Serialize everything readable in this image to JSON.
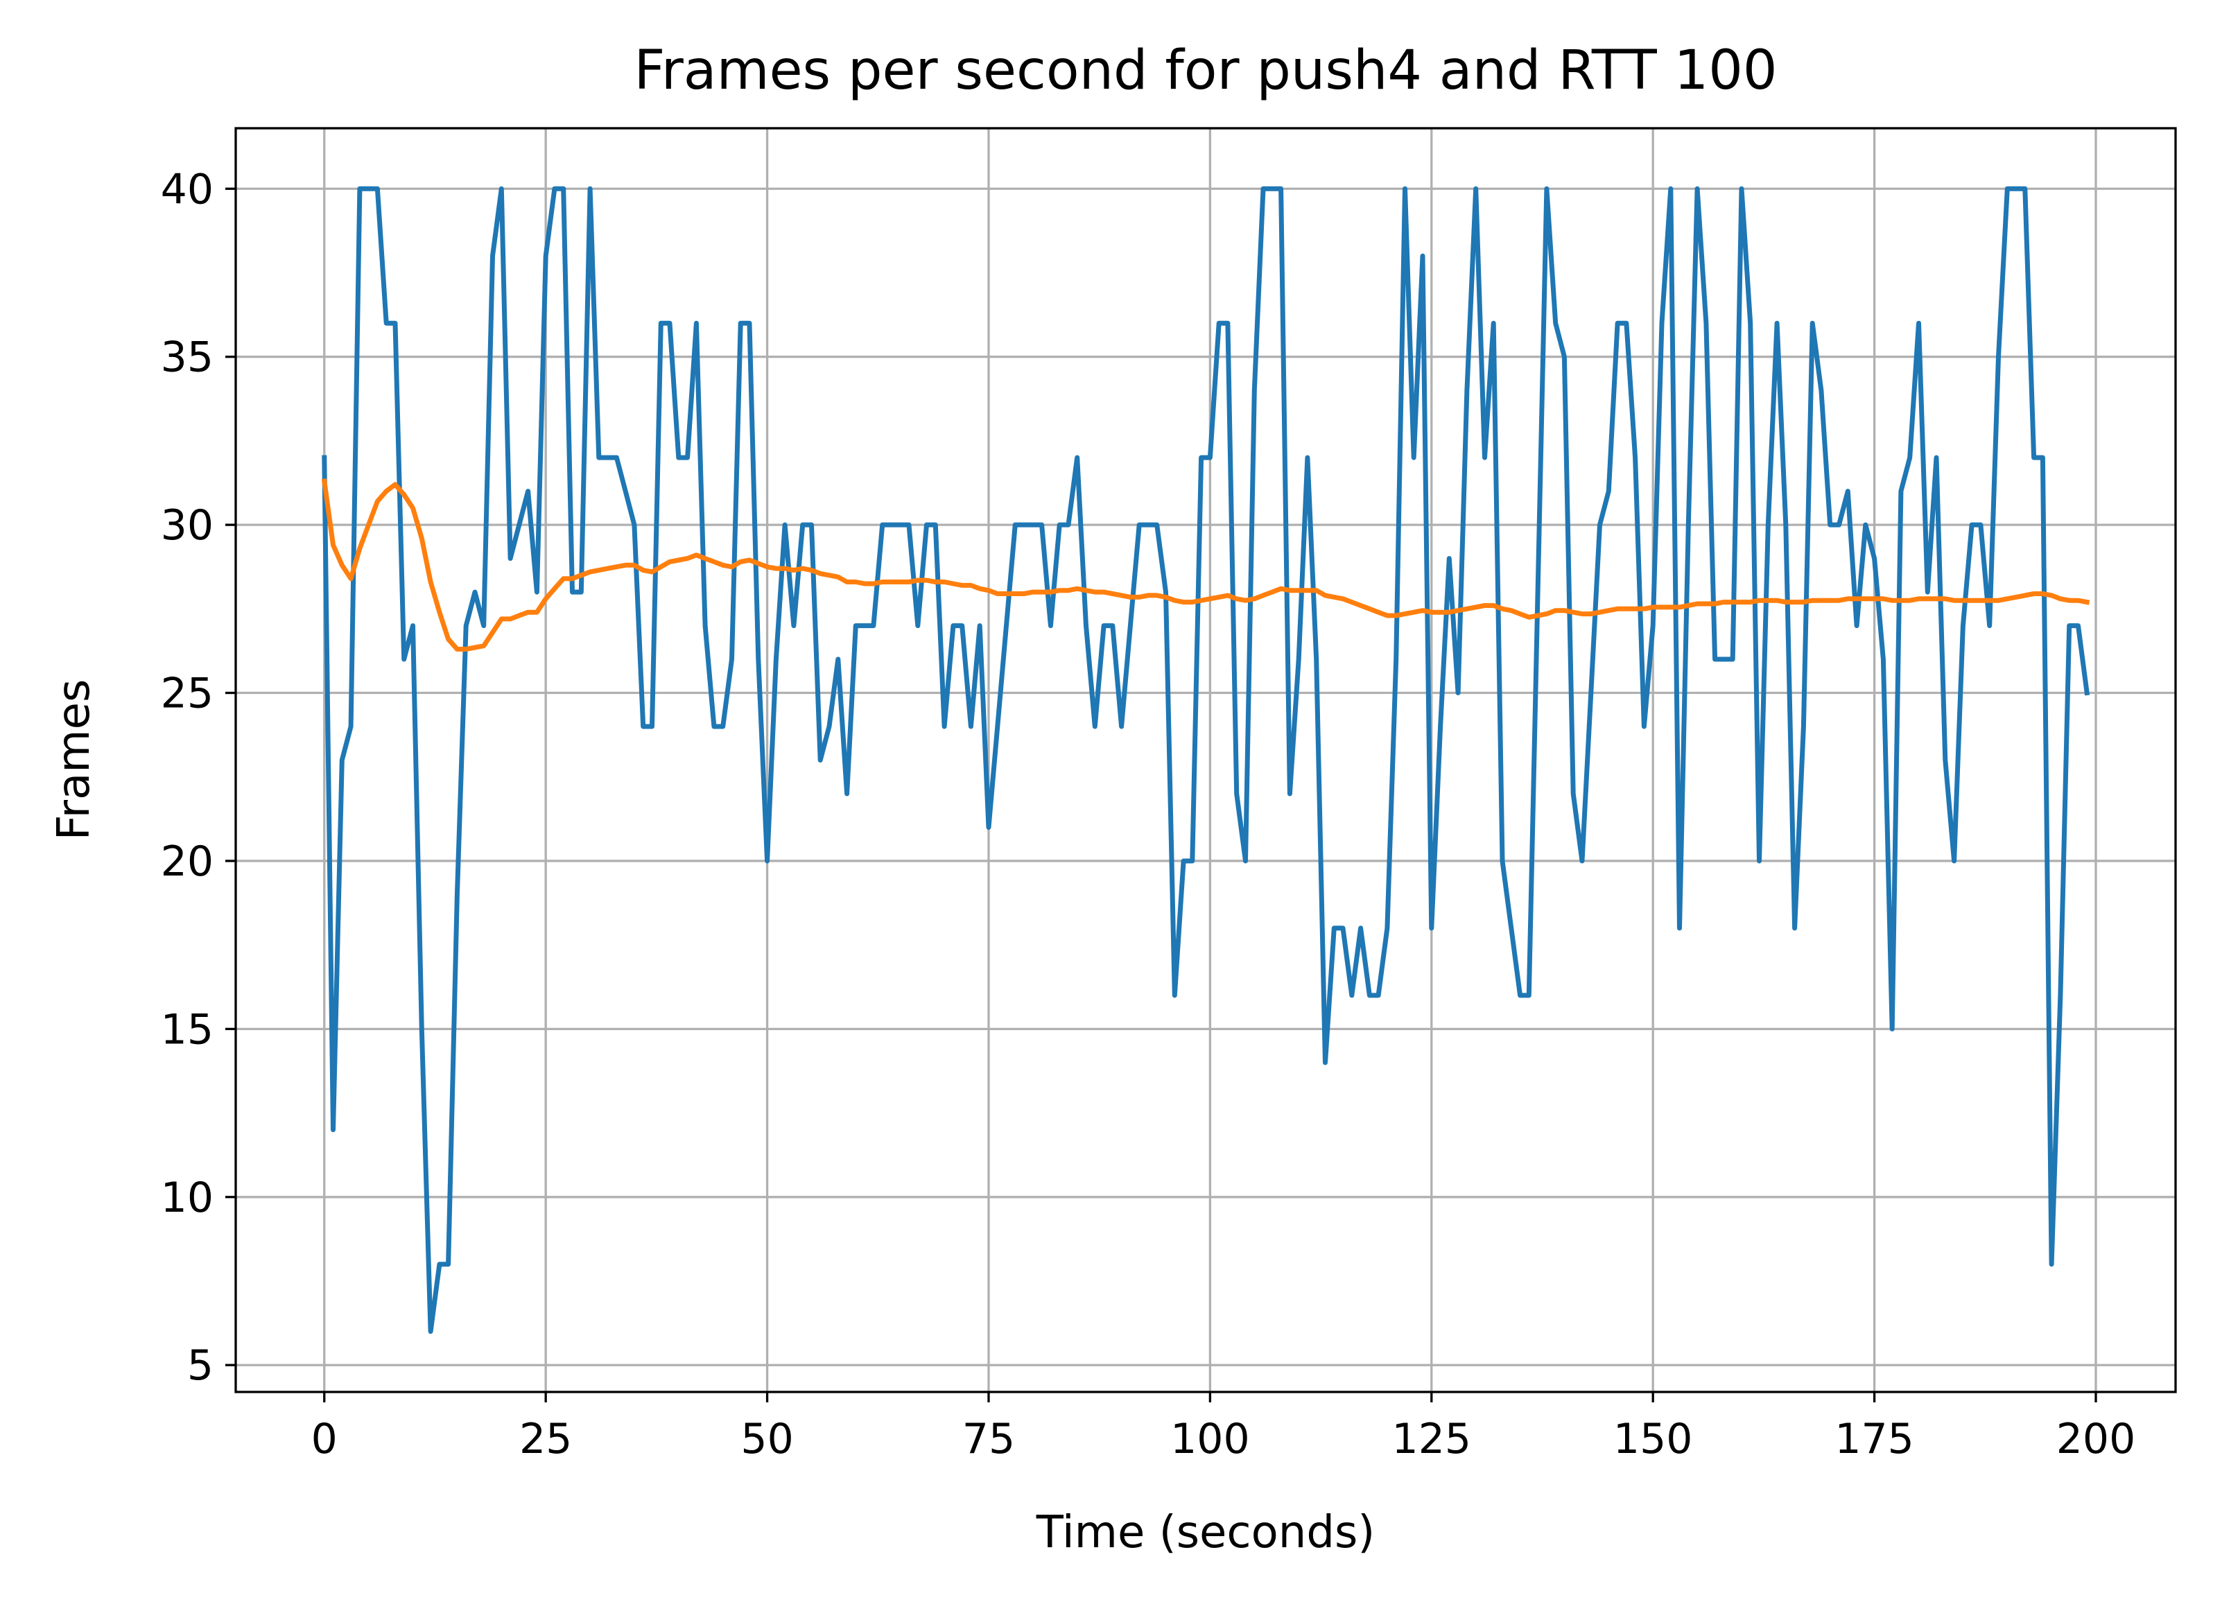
{
  "chart_data": {
    "type": "line",
    "title": "Frames per second for push4 and RTT 100",
    "xlabel": "Time (seconds)",
    "ylabel": "Frames",
    "xlim": [
      -10,
      209
    ],
    "ylim": [
      4.2,
      41.8
    ],
    "xticks": [
      0,
      25,
      50,
      75,
      100,
      125,
      150,
      175,
      200
    ],
    "yticks": [
      5,
      10,
      15,
      20,
      25,
      30,
      35,
      40
    ],
    "grid": true,
    "series": [
      {
        "color": "#1f77b4",
        "x": [
          0,
          1,
          2,
          3,
          4,
          5,
          6,
          7,
          8,
          9,
          10,
          11,
          12,
          13,
          14,
          15,
          16,
          17,
          18,
          19,
          20,
          21,
          22,
          23,
          24,
          25,
          26,
          27,
          28,
          29,
          30,
          31,
          32,
          33,
          34,
          35,
          36,
          37,
          38,
          39,
          40,
          41,
          42,
          43,
          44,
          45,
          46,
          47,
          48,
          49,
          50,
          51,
          52,
          53,
          54,
          55,
          56,
          57,
          58,
          59,
          60,
          61,
          62,
          63,
          64,
          65,
          66,
          67,
          68,
          69,
          70,
          71,
          72,
          73,
          74,
          75,
          76,
          77,
          78,
          79,
          80,
          81,
          82,
          83,
          84,
          85,
          86,
          87,
          88,
          89,
          90,
          91,
          92,
          93,
          94,
          95,
          96,
          97,
          98,
          99,
          100,
          101,
          102,
          103,
          104,
          105,
          106,
          107,
          108,
          109,
          110,
          111,
          112,
          113,
          114,
          115,
          116,
          117,
          118,
          119,
          120,
          121,
          122,
          123,
          124,
          125,
          126,
          127,
          128,
          129,
          130,
          131,
          132,
          133,
          134,
          135,
          136,
          137,
          138,
          139,
          140,
          141,
          142,
          143,
          144,
          145,
          146,
          147,
          148,
          149,
          150,
          151,
          152,
          153,
          154,
          155,
          156,
          157,
          158,
          159,
          160,
          161,
          162,
          163,
          164,
          165,
          166,
          167,
          168,
          169,
          170,
          171,
          172,
          173,
          174,
          175,
          176,
          177,
          178,
          179,
          180,
          181,
          182,
          183,
          184,
          185,
          186,
          187,
          188,
          189,
          190,
          191,
          192,
          193,
          194,
          195,
          196,
          197,
          198,
          199
        ],
        "y": [
          32,
          12,
          23,
          24,
          40,
          40,
          40,
          36,
          36,
          26,
          27,
          15,
          6,
          8,
          8,
          19,
          27,
          28,
          27,
          38,
          40,
          29,
          30,
          31,
          28,
          38,
          40,
          40,
          28,
          28,
          40,
          32,
          32,
          32,
          31,
          30,
          24,
          24,
          36,
          36,
          32,
          32,
          36,
          27,
          24,
          24,
          26,
          36,
          36,
          26,
          20,
          26,
          30,
          27,
          30,
          30,
          23,
          24,
          26,
          22,
          27,
          27,
          27,
          30,
          30,
          30,
          30,
          27,
          30,
          30,
          24,
          27,
          27,
          24,
          27,
          21,
          24,
          27,
          30,
          30,
          30,
          30,
          27,
          30,
          30,
          32,
          27,
          24,
          27,
          27,
          24,
          27,
          30,
          30,
          30,
          28,
          16,
          20,
          20,
          32,
          32,
          36,
          36,
          22,
          20,
          34,
          40,
          40,
          40,
          22,
          26,
          32,
          26,
          14,
          18,
          18,
          16,
          18,
          16,
          16,
          18,
          26,
          40,
          32,
          38,
          18,
          24,
          29,
          25,
          34,
          40,
          32,
          36,
          20,
          18,
          16,
          16,
          28,
          40,
          36,
          35,
          22,
          20,
          25,
          30,
          31,
          36,
          36,
          32,
          24,
          27,
          36,
          40,
          18,
          30,
          40,
          36,
          26,
          26,
          26,
          40,
          36,
          20,
          30,
          36,
          30,
          18,
          24,
          36,
          34,
          30,
          30,
          31,
          27,
          30,
          29,
          26,
          15,
          31,
          32,
          36,
          28,
          32,
          23,
          20,
          27,
          30,
          30,
          27,
          35,
          40,
          40,
          40,
          32,
          32,
          8,
          16,
          27,
          27,
          25
        ]
      },
      {
        "color": "#ff7f0e",
        "x": [
          0,
          1,
          2,
          3,
          4,
          5,
          6,
          7,
          8,
          9,
          10,
          11,
          12,
          13,
          14,
          15,
          16,
          17,
          18,
          19,
          20,
          21,
          22,
          23,
          24,
          25,
          26,
          27,
          28,
          29,
          30,
          31,
          32,
          33,
          34,
          35,
          36,
          37,
          38,
          39,
          40,
          41,
          42,
          43,
          44,
          45,
          46,
          47,
          48,
          49,
          50,
          51,
          52,
          53,
          54,
          55,
          56,
          57,
          58,
          59,
          60,
          61,
          62,
          63,
          64,
          65,
          66,
          67,
          68,
          69,
          70,
          71,
          72,
          73,
          74,
          75,
          76,
          77,
          78,
          79,
          80,
          81,
          82,
          83,
          84,
          85,
          86,
          87,
          88,
          89,
          90,
          91,
          92,
          93,
          94,
          95,
          96,
          97,
          98,
          99,
          100,
          101,
          102,
          103,
          104,
          105,
          106,
          107,
          108,
          109,
          110,
          111,
          112,
          113,
          114,
          115,
          116,
          117,
          118,
          119,
          120,
          121,
          122,
          123,
          124,
          125,
          126,
          127,
          128,
          129,
          130,
          131,
          132,
          133,
          134,
          135,
          136,
          137,
          138,
          139,
          140,
          141,
          142,
          143,
          144,
          145,
          146,
          147,
          148,
          149,
          150,
          151,
          152,
          153,
          154,
          155,
          156,
          157,
          158,
          159,
          160,
          161,
          162,
          163,
          164,
          165,
          166,
          167,
          168,
          169,
          170,
          171,
          172,
          173,
          174,
          175,
          176,
          177,
          178,
          179,
          180,
          181,
          182,
          183,
          184,
          185,
          186,
          187,
          188,
          189,
          190,
          191,
          192,
          193,
          194,
          195,
          196,
          197,
          198,
          199
        ],
        "y": [
          31.3,
          29.4,
          28.8,
          28.4,
          29.3,
          30.0,
          30.7,
          31.0,
          31.2,
          30.9,
          30.5,
          29.6,
          28.3,
          27.4,
          26.6,
          26.3,
          26.3,
          26.35,
          26.4,
          26.8,
          27.2,
          27.2,
          27.3,
          27.4,
          27.4,
          27.8,
          28.1,
          28.4,
          28.4,
          28.5,
          28.6,
          28.65,
          28.7,
          28.75,
          28.8,
          28.8,
          28.65,
          28.6,
          28.75,
          28.9,
          28.95,
          29.0,
          29.1,
          29.0,
          28.9,
          28.8,
          28.75,
          28.9,
          28.95,
          28.85,
          28.75,
          28.7,
          28.7,
          28.65,
          28.7,
          28.65,
          28.55,
          28.5,
          28.45,
          28.3,
          28.3,
          28.25,
          28.25,
          28.3,
          28.3,
          28.3,
          28.3,
          28.35,
          28.35,
          28.3,
          28.3,
          28.25,
          28.2,
          28.2,
          28.1,
          28.05,
          27.95,
          27.95,
          27.95,
          27.95,
          28.0,
          28.0,
          28.0,
          28.05,
          28.05,
          28.1,
          28.05,
          28.0,
          28.0,
          27.95,
          27.9,
          27.85,
          27.85,
          27.9,
          27.9,
          27.85,
          27.75,
          27.7,
          27.7,
          27.75,
          27.8,
          27.85,
          27.9,
          27.8,
          27.75,
          27.8,
          27.9,
          28.0,
          28.1,
          28.05,
          28.05,
          28.05,
          28.05,
          27.9,
          27.85,
          27.8,
          27.7,
          27.6,
          27.5,
          27.4,
          27.3,
          27.3,
          27.35,
          27.4,
          27.45,
          27.4,
          27.4,
          27.4,
          27.45,
          27.5,
          27.55,
          27.6,
          27.6,
          27.5,
          27.45,
          27.35,
          27.25,
          27.3,
          27.35,
          27.45,
          27.45,
          27.4,
          27.35,
          27.35,
          27.4,
          27.45,
          27.5,
          27.5,
          27.5,
          27.5,
          27.55,
          27.55,
          27.55,
          27.55,
          27.6,
          27.65,
          27.65,
          27.65,
          27.7,
          27.7,
          27.7,
          27.7,
          27.75,
          27.75,
          27.75,
          27.7,
          27.7,
          27.7,
          27.75,
          27.75,
          27.75,
          27.75,
          27.8,
          27.8,
          27.8,
          27.8,
          27.8,
          27.75,
          27.75,
          27.75,
          27.8,
          27.8,
          27.8,
          27.8,
          27.75,
          27.75,
          27.75,
          27.75,
          27.75,
          27.75,
          27.8,
          27.85,
          27.9,
          27.95,
          27.95,
          27.9,
          27.8,
          27.75,
          27.75,
          27.7
        ]
      }
    ]
  }
}
